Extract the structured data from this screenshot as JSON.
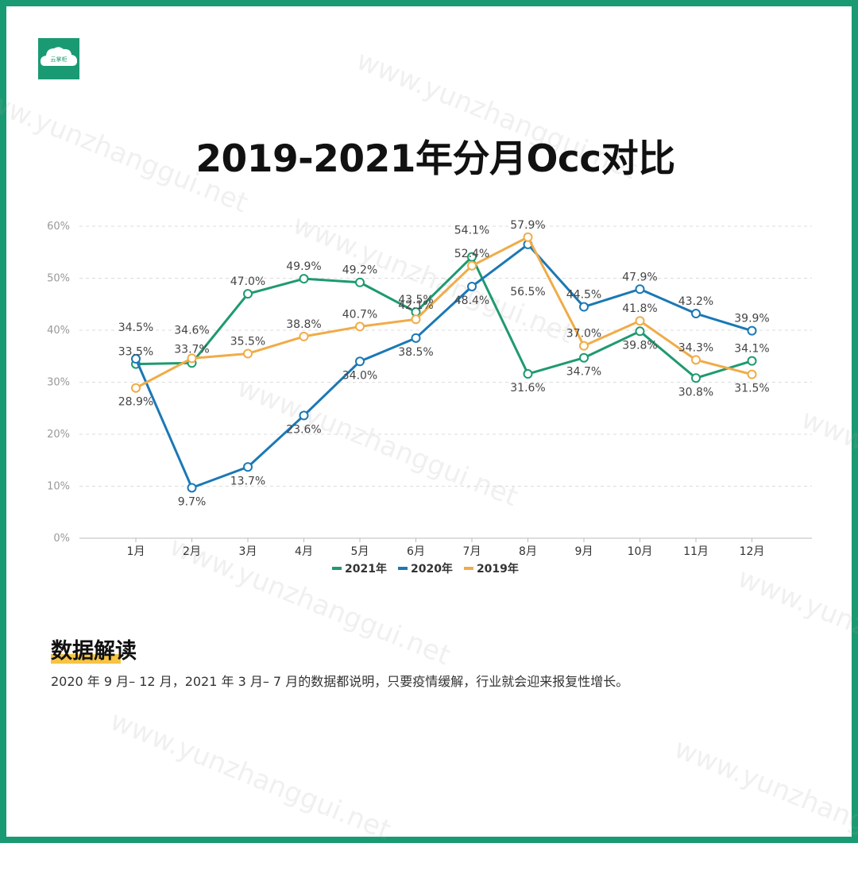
{
  "logo": {
    "text": "云掌柜"
  },
  "watermark": "www.yunzhanggui.net",
  "page_title": "2019-2021年分月Occ对比",
  "section": {
    "title": "数据解读",
    "body": "2020 年 9 月– 12 月，2021 年 3 月– 7 月的数据都说明，只要疫情缓解，行业就会迎来报复性增长。"
  },
  "colors": {
    "frame": "#1a9a72",
    "accent": "#f6c343"
  },
  "chart_data": {
    "type": "line",
    "title": "2019-2021年分月Occ对比",
    "xlabel": "",
    "ylabel": "",
    "categories": [
      "1月",
      "2月",
      "3月",
      "4月",
      "5月",
      "6月",
      "7月",
      "8月",
      "9月",
      "10月",
      "11月",
      "12月"
    ],
    "y_ticks": [
      "0%",
      "10%",
      "20%",
      "30%",
      "40%",
      "50%",
      "60%"
    ],
    "ylim": [
      0,
      60
    ],
    "grid": true,
    "legend_position": "bottom",
    "series": [
      {
        "name": "2021年",
        "color": "#1e9a6f",
        "values": [
          33.5,
          33.7,
          47.0,
          49.9,
          49.2,
          43.5,
          54.1,
          31.6,
          34.7,
          39.8,
          30.8,
          34.1
        ],
        "labels": [
          "33.5%",
          "33.7%",
          "47.0%",
          "49.9%",
          "49.2%",
          "43.5%",
          "54.1%",
          "31.6%",
          "34.7%",
          "39.8%",
          "30.8%",
          "34.1%"
        ]
      },
      {
        "name": "2020年",
        "color": "#1b78b5",
        "values": [
          34.5,
          9.7,
          13.7,
          23.6,
          34.0,
          38.5,
          48.4,
          56.5,
          44.5,
          47.9,
          43.2,
          39.9
        ],
        "labels": [
          "34.5%",
          "9.7%",
          "13.7%",
          "23.6%",
          "34.0%",
          "38.5%",
          "48.4%",
          "56.5%",
          "44.5%",
          "47.9%",
          "43.2%",
          "39.9%"
        ]
      },
      {
        "name": "2019年",
        "color": "#f0ac48",
        "values": [
          28.9,
          34.6,
          35.5,
          38.8,
          40.7,
          42.1,
          52.4,
          57.9,
          37.0,
          41.8,
          34.3,
          31.5
        ],
        "labels": [
          "28.9%",
          "34.6%",
          "35.5%",
          "38.8%",
          "40.7%",
          "42.1%",
          "52.4%",
          "57.9%",
          "37.0%",
          "41.8%",
          "34.3%",
          "31.5%"
        ]
      }
    ]
  }
}
